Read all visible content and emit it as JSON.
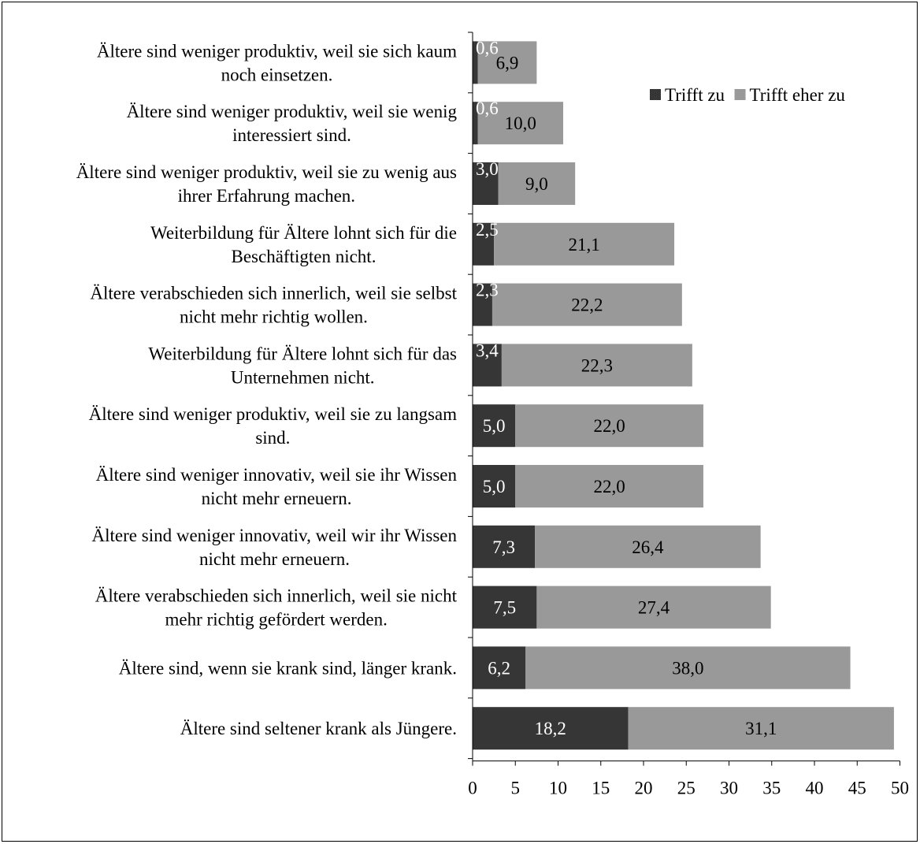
{
  "chart_data": {
    "type": "bar",
    "orientation": "horizontal",
    "stacked": true,
    "categories": [
      [
        "Ältere sind weniger produktiv, weil sie sich kaum",
        "noch einsetzen."
      ],
      [
        "Ältere sind weniger produktiv, weil sie wenig",
        "interessiert sind."
      ],
      [
        "Ältere sind weniger produktiv, weil sie zu wenig aus",
        "ihrer Erfahrung machen."
      ],
      [
        "Weiterbildung für Ältere lohnt sich für die",
        "Beschäftigten nicht."
      ],
      [
        "Ältere verabschieden sich innerlich, weil sie selbst",
        "nicht mehr richtig wollen."
      ],
      [
        "Weiterbildung für Ältere lohnt sich für das",
        "Unternehmen nicht."
      ],
      [
        "Ältere sind weniger produktiv, weil sie zu langsam",
        "sind."
      ],
      [
        "Ältere sind weniger innovativ, weil sie ihr Wissen",
        "nicht mehr erneuern."
      ],
      [
        "Ältere sind weniger innovativ, weil wir ihr Wissen",
        "nicht mehr erneuern."
      ],
      [
        "Ältere verabschieden sich innerlich, weil sie nicht",
        "mehr richtig gefördert werden."
      ],
      [
        "Ältere sind, wenn sie krank sind, länger krank."
      ],
      [
        "Ältere sind seltener krank als Jüngere."
      ]
    ],
    "series": [
      {
        "name": "Trifft zu",
        "color": "#363636",
        "values": [
          0.6,
          0.6,
          3.0,
          2.5,
          2.3,
          3.4,
          5.0,
          5.0,
          7.3,
          7.5,
          6.2,
          18.2
        ],
        "labels": [
          "0,6",
          "0,6",
          "3,0",
          "2,5",
          "2,3",
          "3,4",
          "5,0",
          "5,0",
          "7,3",
          "7,5",
          "6,2",
          "18,2"
        ],
        "label_color": "#ffffff"
      },
      {
        "name": "Trifft eher zu",
        "color": "#999999",
        "values": [
          6.9,
          10.0,
          9.0,
          21.1,
          22.2,
          22.3,
          22.0,
          22.0,
          26.4,
          27.4,
          38.0,
          31.1
        ],
        "labels": [
          "6,9",
          "10,0",
          "9,0",
          "21,1",
          "22,2",
          "22,3",
          "22,0",
          "22,0",
          "26,4",
          "27,4",
          "38,0",
          "31,1"
        ],
        "label_color": "#000000"
      }
    ],
    "xlim": [
      0,
      50
    ],
    "xticks": [
      0,
      5,
      10,
      15,
      20,
      25,
      30,
      35,
      40,
      45,
      50
    ],
    "title": "",
    "xlabel": "",
    "ylabel": "",
    "grid": false,
    "legend": "top-right"
  }
}
